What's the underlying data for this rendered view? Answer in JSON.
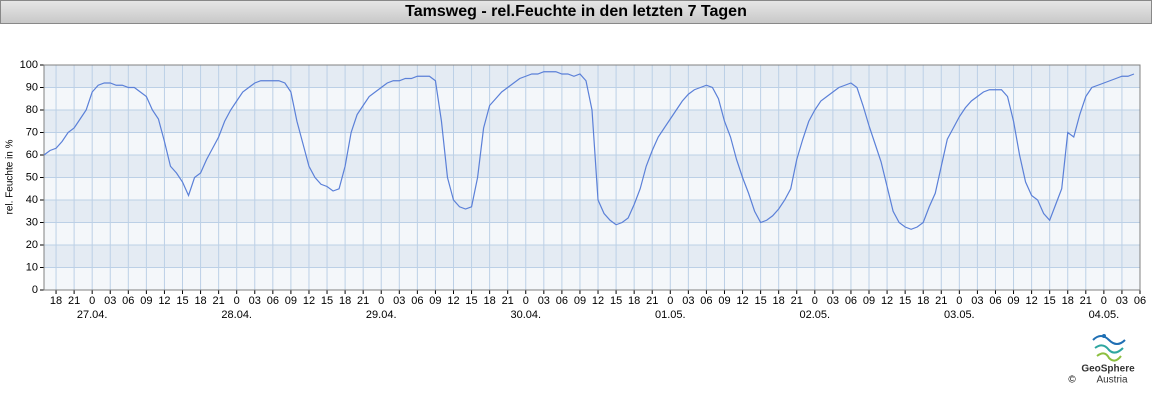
{
  "chart_data": {
    "type": "line",
    "title": "Tamsweg - rel.Feuchte in den letzten 7 Tagen",
    "ylabel": "rel. Feuchte in %",
    "x": [
      "26.04. 16:00",
      "26.04. 17:00",
      "26.04. 18:00",
      "26.04. 19:00",
      "26.04. 20:00",
      "26.04. 21:00",
      "26.04. 22:00",
      "26.04. 23:00",
      "27.04. 00:00",
      "27.04. 01:00",
      "27.04. 02:00",
      "27.04. 03:00",
      "27.04. 04:00",
      "27.04. 05:00",
      "27.04. 06:00",
      "27.04. 07:00",
      "27.04. 08:00",
      "27.04. 09:00",
      "27.04. 10:00",
      "27.04. 11:00",
      "27.04. 12:00",
      "27.04. 13:00",
      "27.04. 14:00",
      "27.04. 15:00",
      "27.04. 16:00",
      "27.04. 17:00",
      "27.04. 18:00",
      "27.04. 19:00",
      "27.04. 20:00",
      "27.04. 21:00",
      "27.04. 22:00",
      "27.04. 23:00",
      "28.04. 00:00",
      "28.04. 01:00",
      "28.04. 02:00",
      "28.04. 03:00",
      "28.04. 04:00",
      "28.04. 05:00",
      "28.04. 06:00",
      "28.04. 07:00",
      "28.04. 08:00",
      "28.04. 09:00",
      "28.04. 10:00",
      "28.04. 11:00",
      "28.04. 12:00",
      "28.04. 13:00",
      "28.04. 14:00",
      "28.04. 15:00",
      "28.04. 16:00",
      "28.04. 17:00",
      "28.04. 18:00",
      "28.04. 19:00",
      "28.04. 20:00",
      "28.04. 21:00",
      "28.04. 22:00",
      "28.04. 23:00",
      "29.04. 00:00",
      "29.04. 01:00",
      "29.04. 02:00",
      "29.04. 03:00",
      "29.04. 04:00",
      "29.04. 05:00",
      "29.04. 06:00",
      "29.04. 07:00",
      "29.04. 08:00",
      "29.04. 09:00",
      "29.04. 10:00",
      "29.04. 11:00",
      "29.04. 12:00",
      "29.04. 13:00",
      "29.04. 14:00",
      "29.04. 15:00",
      "29.04. 16:00",
      "29.04. 17:00",
      "29.04. 18:00",
      "29.04. 19:00",
      "29.04. 20:00",
      "29.04. 21:00",
      "29.04. 22:00",
      "29.04. 23:00",
      "30.04. 00:00",
      "30.04. 01:00",
      "30.04. 02:00",
      "30.04. 03:00",
      "30.04. 04:00",
      "30.04. 05:00",
      "30.04. 06:00",
      "30.04. 07:00",
      "30.04. 08:00",
      "30.04. 09:00",
      "30.04. 10:00",
      "30.04. 11:00",
      "30.04. 12:00",
      "30.04. 13:00",
      "30.04. 14:00",
      "30.04. 15:00",
      "30.04. 16:00",
      "30.04. 17:00",
      "30.04. 18:00",
      "30.04. 19:00",
      "30.04. 20:00",
      "30.04. 21:00",
      "30.04. 22:00",
      "30.04. 23:00",
      "01.05. 00:00",
      "01.05. 01:00",
      "01.05. 02:00",
      "01.05. 03:00",
      "01.05. 04:00",
      "01.05. 05:00",
      "01.05. 06:00",
      "01.05. 07:00",
      "01.05. 08:00",
      "01.05. 09:00",
      "01.05. 10:00",
      "01.05. 11:00",
      "01.05. 12:00",
      "01.05. 13:00",
      "01.05. 14:00",
      "01.05. 15:00",
      "01.05. 16:00",
      "01.05. 17:00",
      "01.05. 18:00",
      "01.05. 19:00",
      "01.05. 20:00",
      "01.05. 21:00",
      "01.05. 22:00",
      "01.05. 23:00",
      "02.05. 00:00",
      "02.05. 01:00",
      "02.05. 02:00",
      "02.05. 03:00",
      "02.05. 04:00",
      "02.05. 05:00",
      "02.05. 06:00",
      "02.05. 07:00",
      "02.05. 08:00",
      "02.05. 09:00",
      "02.05. 10:00",
      "02.05. 11:00",
      "02.05. 12:00",
      "02.05. 13:00",
      "02.05. 14:00",
      "02.05. 15:00",
      "02.05. 16:00",
      "02.05. 17:00",
      "02.05. 18:00",
      "02.05. 19:00",
      "02.05. 20:00",
      "02.05. 21:00",
      "02.05. 22:00",
      "02.05. 23:00",
      "03.05. 00:00",
      "03.05. 01:00",
      "03.05. 02:00",
      "03.05. 03:00",
      "03.05. 04:00",
      "03.05. 05:00",
      "03.05. 06:00",
      "03.05. 07:00",
      "03.05. 08:00",
      "03.05. 09:00",
      "03.05. 10:00",
      "03.05. 11:00",
      "03.05. 12:00",
      "03.05. 13:00",
      "03.05. 14:00",
      "03.05. 15:00",
      "03.05. 16:00",
      "03.05. 17:00",
      "03.05. 18:00",
      "03.05. 19:00",
      "03.05. 20:00",
      "03.05. 21:00",
      "03.05. 22:00",
      "03.05. 23:00",
      "04.05. 00:00",
      "04.05. 01:00",
      "04.05. 02:00",
      "04.05. 03:00",
      "04.05. 04:00",
      "04.05. 05:00"
    ],
    "series": [
      {
        "name": "rel.Feuchte",
        "color": "#5b80d8",
        "values": [
          60,
          62,
          63,
          66,
          70,
          72,
          76,
          80,
          88,
          91,
          92,
          92,
          91,
          91,
          90,
          90,
          88,
          86,
          80,
          76,
          66,
          55,
          52,
          48,
          42,
          50,
          52,
          58,
          63,
          68,
          75,
          80,
          84,
          88,
          90,
          92,
          93,
          93,
          93,
          93,
          92,
          88,
          75,
          65,
          55,
          50,
          47,
          46,
          44,
          45,
          55,
          70,
          78,
          82,
          86,
          88,
          90,
          92,
          93,
          93,
          94,
          94,
          95,
          95,
          95,
          93,
          75,
          50,
          40,
          37,
          36,
          37,
          50,
          72,
          82,
          85,
          88,
          90,
          92,
          94,
          95,
          96,
          96,
          97,
          97,
          97,
          96,
          96,
          95,
          96,
          93,
          80,
          40,
          34,
          31,
          29,
          30,
          32,
          38,
          45,
          55,
          62,
          68,
          72,
          76,
          80,
          84,
          87,
          89,
          90,
          91,
          90,
          85,
          75,
          68,
          58,
          50,
          43,
          35,
          30,
          31,
          33,
          36,
          40,
          45,
          58,
          67,
          75,
          80,
          84,
          86,
          88,
          90,
          91,
          92,
          90,
          82,
          73,
          65,
          57,
          46,
          35,
          30,
          28,
          27,
          28,
          30,
          37,
          43,
          55,
          67,
          72,
          77,
          81,
          84,
          86,
          88,
          89,
          89,
          89,
          86,
          75,
          60,
          48,
          42,
          40,
          34,
          31,
          38,
          45,
          70,
          68,
          78,
          86,
          90,
          91,
          92,
          93,
          94,
          95,
          95,
          96
        ]
      }
    ],
    "xlim": [
      "26.04. 16:00",
      "04.05. 06:00"
    ],
    "xticks": [
      {
        "value": "26.04. 18:00",
        "label": "18"
      },
      {
        "value": "26.04. 21:00",
        "label": "21"
      },
      {
        "value": "27.04. 00:00",
        "label": "0"
      },
      {
        "value": "27.04. 03:00",
        "label": "03"
      },
      {
        "value": "27.04. 06:00",
        "label": "06"
      },
      {
        "value": "27.04. 09:00",
        "label": "09"
      },
      {
        "value": "27.04. 12:00",
        "label": "12"
      },
      {
        "value": "27.04. 15:00",
        "label": "15"
      },
      {
        "value": "27.04. 18:00",
        "label": "18"
      },
      {
        "value": "27.04. 21:00",
        "label": "21"
      },
      {
        "value": "28.04. 00:00",
        "label": "0"
      },
      {
        "value": "28.04. 03:00",
        "label": "03"
      },
      {
        "value": "28.04. 06:00",
        "label": "06"
      },
      {
        "value": "28.04. 09:00",
        "label": "09"
      },
      {
        "value": "28.04. 12:00",
        "label": "12"
      },
      {
        "value": "28.04. 15:00",
        "label": "15"
      },
      {
        "value": "28.04. 18:00",
        "label": "18"
      },
      {
        "value": "28.04. 21:00",
        "label": "21"
      },
      {
        "value": "29.04. 00:00",
        "label": "0"
      },
      {
        "value": "29.04. 03:00",
        "label": "03"
      },
      {
        "value": "29.04. 06:00",
        "label": "06"
      },
      {
        "value": "29.04. 09:00",
        "label": "09"
      },
      {
        "value": "29.04. 12:00",
        "label": "12"
      },
      {
        "value": "29.04. 15:00",
        "label": "15"
      },
      {
        "value": "29.04. 18:00",
        "label": "18"
      },
      {
        "value": "29.04. 21:00",
        "label": "21"
      },
      {
        "value": "30.04. 00:00",
        "label": "0"
      },
      {
        "value": "30.04. 03:00",
        "label": "03"
      },
      {
        "value": "30.04. 06:00",
        "label": "06"
      },
      {
        "value": "30.04. 09:00",
        "label": "09"
      },
      {
        "value": "30.04. 12:00",
        "label": "12"
      },
      {
        "value": "30.04. 15:00",
        "label": "15"
      },
      {
        "value": "30.04. 18:00",
        "label": "18"
      },
      {
        "value": "30.04. 21:00",
        "label": "21"
      },
      {
        "value": "01.05. 00:00",
        "label": "0"
      },
      {
        "value": "01.05. 03:00",
        "label": "03"
      },
      {
        "value": "01.05. 06:00",
        "label": "06"
      },
      {
        "value": "01.05. 09:00",
        "label": "09"
      },
      {
        "value": "01.05. 12:00",
        "label": "12"
      },
      {
        "value": "01.05. 15:00",
        "label": "15"
      },
      {
        "value": "01.05. 18:00",
        "label": "18"
      },
      {
        "value": "01.05. 21:00",
        "label": "21"
      },
      {
        "value": "02.05. 00:00",
        "label": "0"
      },
      {
        "value": "02.05. 03:00",
        "label": "03"
      },
      {
        "value": "02.05. 06:00",
        "label": "06"
      },
      {
        "value": "02.05. 09:00",
        "label": "09"
      },
      {
        "value": "02.05. 12:00",
        "label": "12"
      },
      {
        "value": "02.05. 15:00",
        "label": "15"
      },
      {
        "value": "02.05. 18:00",
        "label": "18"
      },
      {
        "value": "02.05. 21:00",
        "label": "21"
      },
      {
        "value": "03.05. 00:00",
        "label": "0"
      },
      {
        "value": "03.05. 03:00",
        "label": "03"
      },
      {
        "value": "03.05. 06:00",
        "label": "06"
      },
      {
        "value": "03.05. 09:00",
        "label": "09"
      },
      {
        "value": "03.05. 12:00",
        "label": "12"
      },
      {
        "value": "03.05. 15:00",
        "label": "15"
      },
      {
        "value": "03.05. 18:00",
        "label": "18"
      },
      {
        "value": "03.05. 21:00",
        "label": "21"
      },
      {
        "value": "04.05. 00:00",
        "label": "0"
      },
      {
        "value": "04.05. 03:00",
        "label": "03"
      },
      {
        "value": "04.05. 06:00",
        "label": "06"
      }
    ],
    "date_labels": [
      {
        "value": "27.04. 00:00",
        "label": "27.04."
      },
      {
        "value": "28.04. 00:00",
        "label": "28.04."
      },
      {
        "value": "29.04. 00:00",
        "label": "29.04."
      },
      {
        "value": "30.04. 00:00",
        "label": "30.04."
      },
      {
        "value": "01.05. 00:00",
        "label": "01.05."
      },
      {
        "value": "02.05. 00:00",
        "label": "02.05."
      },
      {
        "value": "03.05. 00:00",
        "label": "03.05."
      },
      {
        "value": "04.05. 00:00",
        "label": "04.05."
      }
    ],
    "ylim": [
      0,
      100
    ],
    "yticks": [
      0,
      10,
      20,
      30,
      40,
      50,
      60,
      70,
      80,
      90,
      100
    ],
    "grid": true
  },
  "logo": {
    "name": "GeoSphere",
    "sub": "Austria",
    "copyright": "©"
  }
}
